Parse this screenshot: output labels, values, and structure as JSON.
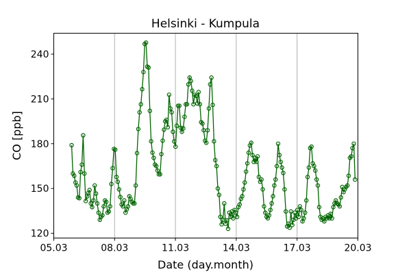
{
  "chart_data": {
    "type": "line",
    "title": "Helsinki - Kumpula",
    "xlabel": "Date (day.month)",
    "ylabel": "CO [ppb]",
    "x_unit": "days since 05.03",
    "xlim": [
      0,
      15
    ],
    "ylim": [
      116.8,
      254
    ],
    "xticks": [
      0,
      3,
      6,
      9,
      12,
      15
    ],
    "xtick_labels": [
      "05.03",
      "08.03",
      "11.03",
      "14.03",
      "17.03",
      "20.03"
    ],
    "yticks": [
      120,
      150,
      180,
      210,
      240
    ],
    "ytick_labels": [
      "120",
      "150",
      "180",
      "210",
      "240"
    ],
    "grid": "vertical at x ticks",
    "color": "#006400",
    "marker": "open circle",
    "series": [
      {
        "name": "CO",
        "x_start_day": 0.88,
        "x_end_day": 14.86,
        "values": [
          179,
          160,
          158.5,
          154,
          152,
          144,
          143.5,
          161,
          166,
          185.6,
          160,
          141.6,
          144.6,
          147,
          149,
          140,
          137.5,
          142,
          152,
          146.6,
          140,
          133.8,
          129,
          131,
          132,
          138,
          142,
          141,
          133.8,
          134.6,
          138,
          153,
          163.6,
          176.5,
          176,
          157.7,
          154.5,
          149.4,
          144.3,
          139.3,
          138,
          142,
          133.8,
          136,
          138,
          144.8,
          143,
          141,
          140,
          140,
          152,
          173.7,
          189.8,
          201,
          206.4,
          216.5,
          228,
          246.8,
          247.7,
          231.6,
          231,
          202,
          181.6,
          174,
          170.5,
          166,
          165,
          162,
          159.5,
          159.5,
          173,
          182,
          189.4,
          195,
          196,
          191,
          212.8,
          203.6,
          201,
          188,
          181.5,
          178,
          192,
          205.4,
          205.4,
          190.7,
          188,
          190.3,
          198,
          206.4,
          206.4,
          219.7,
          224.3,
          222,
          215.5,
          206.4,
          212.8,
          212,
          207,
          214.6,
          206.4,
          194.4,
          193.5,
          189,
          182,
          180.6,
          189,
          203.6,
          219.7,
          224.3,
          206,
          181.6,
          169,
          165,
          150,
          145.7,
          131,
          126,
          129,
          140,
          126.4,
          128.7,
          123,
          133.8,
          131,
          134.6,
          130,
          135.6,
          133.8,
          131,
          137.5,
          139.3,
          143,
          144.8,
          149.4,
          154,
          161.3,
          166.8,
          174,
          178.8,
          180.6,
          172.4,
          167.8,
          170.5,
          167.8,
          171.5,
          157.7,
          154.5,
          156,
          149.4,
          138,
          133.8,
          131,
          130,
          132,
          135.6,
          140,
          144.8,
          152,
          156,
          165,
          180,
          172.4,
          167.8,
          164,
          160.4,
          149.4,
          134.6,
          124.6,
          126.4,
          123.7,
          134.6,
          125.5,
          129,
          133.8,
          130,
          135.6,
          131,
          138,
          135.6,
          128,
          130,
          133.8,
          142,
          157.7,
          164,
          177,
          178,
          166.8,
          165,
          162,
          156,
          152,
          137.5,
          131,
          129,
          130,
          128,
          131,
          130,
          132,
          130,
          133,
          130,
          137.5,
          140,
          142,
          140,
          139.3,
          138,
          144,
          151,
          147.6,
          149.4,
          151,
          152,
          158.5,
          170.5,
          171.5,
          177,
          180,
          156
        ]
      }
    ]
  }
}
